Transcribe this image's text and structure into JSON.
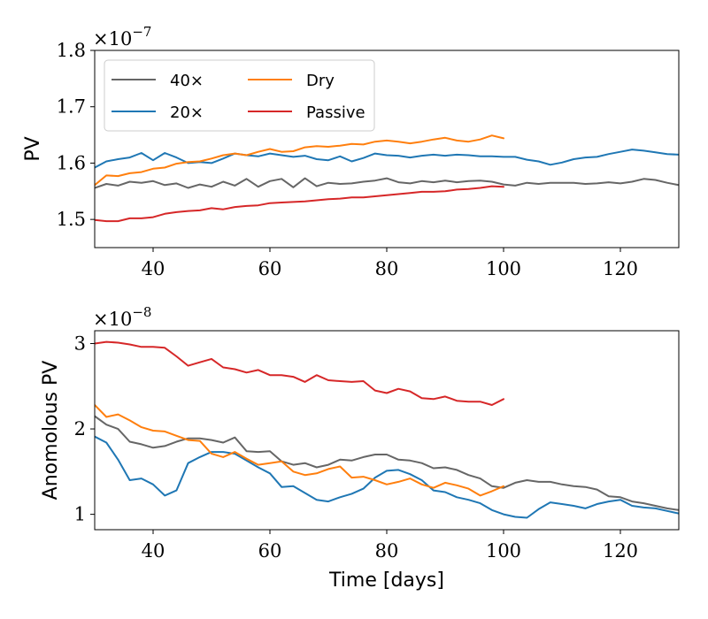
{
  "chart_data": [
    {
      "type": "line",
      "xlabel": "",
      "ylabel": "PV",
      "offset_text": "×10−7",
      "xlim": [
        30,
        130
      ],
      "ylim": [
        1.45,
        1.8
      ],
      "xticks": [
        40,
        60,
        80,
        100,
        120
      ],
      "xtick_labels": [
        "40",
        "60",
        "80",
        "100",
        "120"
      ],
      "yticks": [
        1.5,
        1.6,
        1.7,
        1.8
      ],
      "ytick_labels": [
        "1.5",
        "1.6",
        "1.7",
        "1.8"
      ],
      "grid": false,
      "legend": {
        "position": "top-left",
        "columns": 2,
        "entries": [
          {
            "label": "40×",
            "color": "#666666"
          },
          {
            "label": "20×",
            "color": "#1f77b4"
          },
          {
            "label": "Dry",
            "color": "#ff7f0e"
          },
          {
            "label": "Passive",
            "color": "#d62728"
          }
        ]
      },
      "series": [
        {
          "name": "40×",
          "color": "#666666",
          "x": [
            30,
            32,
            34,
            36,
            38,
            40,
            42,
            44,
            46,
            48,
            50,
            52,
            54,
            56,
            58,
            60,
            62,
            64,
            66,
            68,
            70,
            72,
            74,
            76,
            78,
            80,
            82,
            84,
            86,
            88,
            90,
            92,
            94,
            96,
            98,
            100,
            102,
            104,
            106,
            108,
            110,
            112,
            114,
            116,
            118,
            120,
            122,
            124,
            126,
            128,
            130
          ],
          "y": [
            1.556,
            1.563,
            1.56,
            1.567,
            1.565,
            1.568,
            1.561,
            1.564,
            1.556,
            1.562,
            1.558,
            1.567,
            1.56,
            1.572,
            1.558,
            1.568,
            1.572,
            1.557,
            1.573,
            1.559,
            1.565,
            1.563,
            1.564,
            1.567,
            1.569,
            1.573,
            1.566,
            1.564,
            1.568,
            1.566,
            1.569,
            1.566,
            1.568,
            1.569,
            1.567,
            1.562,
            1.56,
            1.565,
            1.563,
            1.565,
            1.565,
            1.565,
            1.563,
            1.564,
            1.566,
            1.564,
            1.567,
            1.572,
            1.57,
            1.565,
            1.561
          ]
        },
        {
          "name": "20×",
          "color": "#1f77b4",
          "x": [
            30,
            32,
            34,
            36,
            38,
            40,
            42,
            44,
            46,
            48,
            50,
            52,
            54,
            56,
            58,
            60,
            62,
            64,
            66,
            68,
            70,
            72,
            74,
            76,
            78,
            80,
            82,
            84,
            86,
            88,
            90,
            92,
            94,
            96,
            98,
            100,
            102,
            104,
            106,
            108,
            110,
            112,
            114,
            116,
            118,
            120,
            122,
            124,
            126,
            128,
            130
          ],
          "y": [
            1.592,
            1.603,
            1.607,
            1.61,
            1.618,
            1.605,
            1.618,
            1.61,
            1.6,
            1.602,
            1.6,
            1.608,
            1.617,
            1.614,
            1.612,
            1.617,
            1.614,
            1.611,
            1.613,
            1.607,
            1.605,
            1.612,
            1.603,
            1.609,
            1.617,
            1.614,
            1.613,
            1.61,
            1.613,
            1.615,
            1.613,
            1.615,
            1.614,
            1.612,
            1.612,
            1.611,
            1.611,
            1.606,
            1.603,
            1.597,
            1.601,
            1.607,
            1.61,
            1.611,
            1.616,
            1.62,
            1.624,
            1.622,
            1.619,
            1.616,
            1.615
          ]
        },
        {
          "name": "Dry",
          "color": "#ff7f0e",
          "x": [
            30,
            32,
            34,
            36,
            38,
            40,
            42,
            44,
            46,
            48,
            50,
            52,
            54,
            56,
            58,
            60,
            62,
            64,
            66,
            68,
            70,
            72,
            74,
            76,
            78,
            80,
            82,
            84,
            86,
            88,
            90,
            92,
            94,
            96,
            98,
            100
          ],
          "y": [
            1.561,
            1.578,
            1.577,
            1.582,
            1.584,
            1.59,
            1.592,
            1.599,
            1.602,
            1.603,
            1.608,
            1.614,
            1.617,
            1.614,
            1.62,
            1.625,
            1.62,
            1.621,
            1.628,
            1.63,
            1.629,
            1.631,
            1.634,
            1.633,
            1.638,
            1.64,
            1.638,
            1.635,
            1.638,
            1.642,
            1.645,
            1.64,
            1.638,
            1.642,
            1.649,
            1.644
          ]
        },
        {
          "name": "Passive",
          "color": "#d62728",
          "x": [
            30,
            32,
            34,
            36,
            38,
            40,
            42,
            44,
            46,
            48,
            50,
            52,
            54,
            56,
            58,
            60,
            62,
            64,
            66,
            68,
            70,
            72,
            74,
            76,
            78,
            80,
            82,
            84,
            86,
            88,
            90,
            92,
            94,
            96,
            98,
            100
          ],
          "y": [
            1.499,
            1.497,
            1.497,
            1.502,
            1.502,
            1.504,
            1.51,
            1.513,
            1.515,
            1.516,
            1.52,
            1.518,
            1.522,
            1.524,
            1.525,
            1.529,
            1.53,
            1.531,
            1.532,
            1.534,
            1.536,
            1.537,
            1.539,
            1.539,
            1.541,
            1.543,
            1.545,
            1.547,
            1.549,
            1.549,
            1.55,
            1.553,
            1.554,
            1.556,
            1.559,
            1.558
          ]
        }
      ]
    },
    {
      "type": "line",
      "xlabel": "Time [days]",
      "ylabel": "Anomolous PV",
      "offset_text": "×10−8",
      "xlim": [
        30,
        130
      ],
      "ylim": [
        0.82,
        3.15
      ],
      "xticks": [
        40,
        60,
        80,
        100,
        120
      ],
      "xtick_labels": [
        "40",
        "60",
        "80",
        "100",
        "120"
      ],
      "yticks": [
        1,
        2,
        3
      ],
      "ytick_labels": [
        "1",
        "2",
        "3"
      ],
      "grid": false,
      "series": [
        {
          "name": "40×",
          "color": "#666666",
          "x": [
            30,
            32,
            34,
            36,
            38,
            40,
            42,
            44,
            46,
            48,
            50,
            52,
            54,
            56,
            58,
            60,
            62,
            64,
            66,
            68,
            70,
            72,
            74,
            76,
            78,
            80,
            82,
            84,
            86,
            88,
            90,
            92,
            94,
            96,
            98,
            100,
            102,
            104,
            106,
            108,
            110,
            112,
            114,
            116,
            118,
            120,
            122,
            124,
            126,
            128,
            130
          ],
          "y": [
            2.15,
            2.05,
            2.0,
            1.85,
            1.82,
            1.78,
            1.8,
            1.85,
            1.89,
            1.89,
            1.87,
            1.84,
            1.9,
            1.74,
            1.73,
            1.74,
            1.62,
            1.58,
            1.6,
            1.55,
            1.58,
            1.64,
            1.63,
            1.67,
            1.7,
            1.7,
            1.64,
            1.63,
            1.6,
            1.54,
            1.55,
            1.52,
            1.46,
            1.42,
            1.33,
            1.31,
            1.37,
            1.4,
            1.38,
            1.38,
            1.35,
            1.33,
            1.32,
            1.29,
            1.21,
            1.2,
            1.15,
            1.13,
            1.1,
            1.07,
            1.05
          ]
        },
        {
          "name": "20×",
          "color": "#1f77b4",
          "x": [
            30,
            32,
            34,
            36,
            38,
            40,
            42,
            44,
            46,
            48,
            50,
            52,
            54,
            56,
            58,
            60,
            62,
            64,
            66,
            68,
            70,
            72,
            74,
            76,
            78,
            80,
            82,
            84,
            86,
            88,
            90,
            92,
            94,
            96,
            98,
            100,
            102,
            104,
            106,
            108,
            110,
            112,
            114,
            116,
            118,
            120,
            122,
            124,
            126,
            128,
            130
          ],
          "y": [
            1.91,
            1.84,
            1.64,
            1.4,
            1.42,
            1.35,
            1.22,
            1.28,
            1.6,
            1.67,
            1.73,
            1.73,
            1.71,
            1.63,
            1.55,
            1.48,
            1.32,
            1.33,
            1.25,
            1.17,
            1.15,
            1.2,
            1.24,
            1.3,
            1.43,
            1.51,
            1.52,
            1.47,
            1.4,
            1.28,
            1.26,
            1.2,
            1.17,
            1.13,
            1.05,
            1.0,
            0.97,
            0.96,
            1.06,
            1.14,
            1.12,
            1.1,
            1.07,
            1.12,
            1.15,
            1.17,
            1.1,
            1.08,
            1.07,
            1.04,
            1.01
          ]
        },
        {
          "name": "Dry",
          "color": "#ff7f0e",
          "x": [
            30,
            32,
            34,
            36,
            38,
            40,
            42,
            44,
            46,
            48,
            50,
            52,
            54,
            56,
            58,
            60,
            62,
            64,
            66,
            68,
            70,
            72,
            74,
            76,
            78,
            80,
            82,
            84,
            86,
            88,
            90,
            92,
            94,
            96,
            98,
            100
          ],
          "y": [
            2.28,
            2.14,
            2.17,
            2.1,
            2.02,
            1.98,
            1.97,
            1.92,
            1.87,
            1.86,
            1.71,
            1.67,
            1.73,
            1.65,
            1.58,
            1.6,
            1.62,
            1.5,
            1.46,
            1.48,
            1.53,
            1.56,
            1.43,
            1.44,
            1.4,
            1.35,
            1.38,
            1.42,
            1.35,
            1.31,
            1.37,
            1.34,
            1.3,
            1.22,
            1.27,
            1.33
          ]
        },
        {
          "name": "Passive",
          "color": "#d62728",
          "x": [
            30,
            32,
            34,
            36,
            38,
            40,
            42,
            44,
            46,
            48,
            50,
            52,
            54,
            56,
            58,
            60,
            62,
            64,
            66,
            68,
            70,
            72,
            74,
            76,
            78,
            80,
            82,
            84,
            86,
            88,
            90,
            92,
            94,
            96,
            98,
            100
          ],
          "y": [
            3.0,
            3.02,
            3.01,
            2.99,
            2.96,
            2.96,
            2.95,
            2.85,
            2.74,
            2.78,
            2.82,
            2.72,
            2.7,
            2.66,
            2.69,
            2.63,
            2.63,
            2.61,
            2.55,
            2.63,
            2.57,
            2.56,
            2.55,
            2.56,
            2.45,
            2.42,
            2.47,
            2.44,
            2.36,
            2.35,
            2.38,
            2.33,
            2.32,
            2.32,
            2.28,
            2.35
          ]
        }
      ]
    }
  ]
}
